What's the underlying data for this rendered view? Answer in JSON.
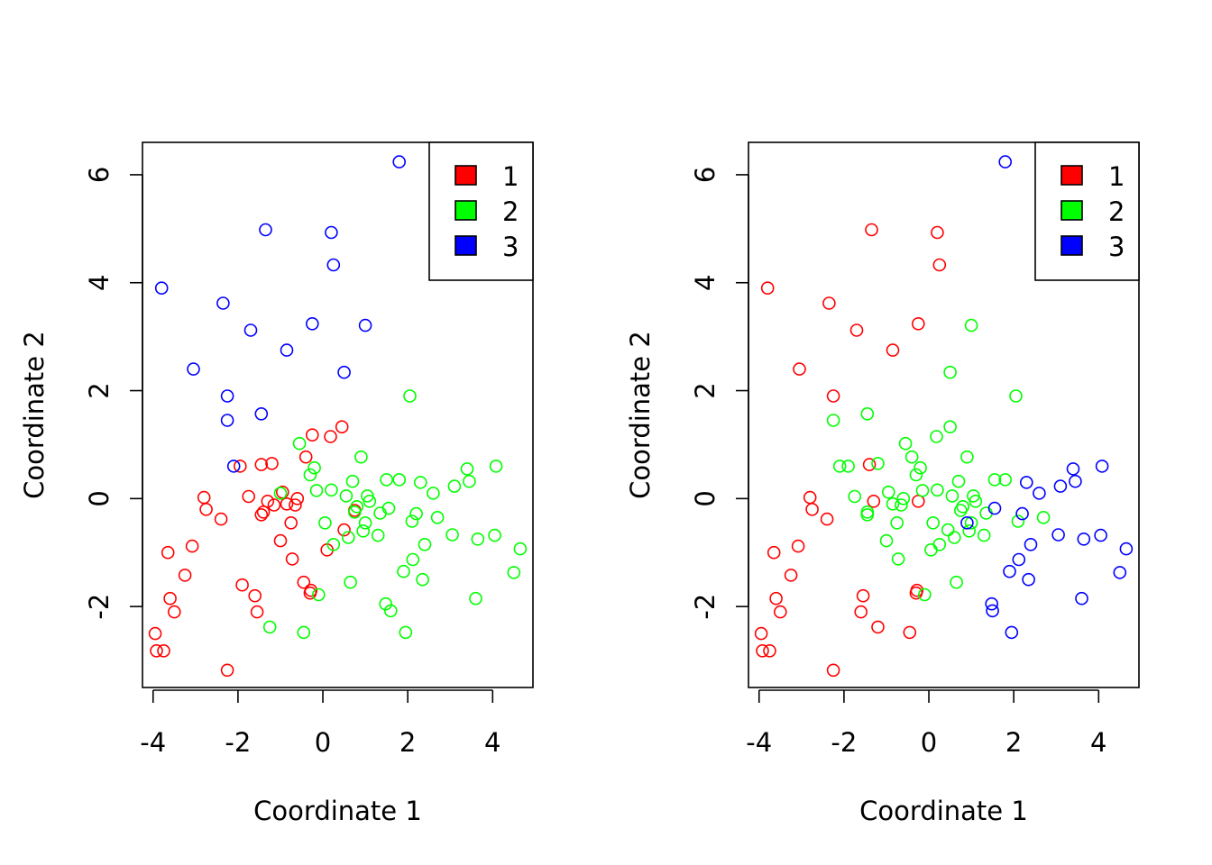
{
  "chart_data": [
    {
      "type": "scatter",
      "xlabel": "Coordinate 1",
      "ylabel": "Coordinate 2",
      "xlim": [
        -4.25,
        4.95
      ],
      "ylim": [
        -3.5,
        6.6
      ],
      "xticks": [
        -4,
        -2,
        0,
        2,
        4
      ],
      "yticks": [
        -2,
        0,
        2,
        4,
        6
      ],
      "xtick_labels": [
        "-4",
        "-2",
        "0",
        "2",
        "4"
      ],
      "ytick_labels": [
        "-2",
        "0",
        "2",
        "4",
        "6"
      ],
      "grid": false,
      "legend": {
        "placement": "top-right",
        "labels": [
          "1",
          "2",
          "3"
        ]
      },
      "series": [
        {
          "name": "1",
          "color": "#ff0000",
          "x": [
            -3.95,
            -3.75,
            -3.92,
            -3.6,
            -3.5,
            -3.65,
            -3.25,
            -3.08,
            -2.8,
            -2.75,
            -2.4,
            -2.25,
            -1.95,
            -1.9,
            -1.75,
            -1.6,
            -1.55,
            -1.45,
            -1.4,
            -1.45,
            -1.3,
            -1.2,
            -1.15,
            -1.0,
            -0.95,
            -0.85,
            -0.75,
            -0.72,
            -0.65,
            -0.6,
            -0.45,
            -0.4,
            -0.3,
            -0.28,
            -0.25,
            0.1,
            0.18,
            0.45,
            0.5,
            0.75
          ],
          "y": [
            -2.5,
            -2.82,
            -2.82,
            -1.85,
            -2.1,
            -1.0,
            -1.42,
            -0.88,
            0.02,
            -0.2,
            -0.38,
            -3.18,
            0.6,
            -1.6,
            0.04,
            -1.8,
            -2.1,
            -0.3,
            -0.25,
            0.63,
            -0.05,
            0.65,
            -0.12,
            -0.78,
            0.12,
            -0.1,
            -0.45,
            -1.12,
            -0.12,
            0.0,
            -1.55,
            0.77,
            -1.75,
            -1.7,
            1.18,
            -0.95,
            1.15,
            1.33,
            -0.58,
            -0.22
          ]
        },
        {
          "name": "2",
          "color": "#00ff00",
          "x": [
            -1.25,
            -1.0,
            -0.55,
            -0.45,
            -0.3,
            -0.2,
            -0.15,
            -0.1,
            0.05,
            0.2,
            0.25,
            0.55,
            0.6,
            0.65,
            0.7,
            0.75,
            0.8,
            0.9,
            0.95,
            1.0,
            1.05,
            1.1,
            1.3,
            1.35,
            1.48,
            1.5,
            1.55,
            1.6,
            1.8,
            1.9,
            1.95,
            2.05,
            2.1,
            2.12,
            2.2,
            2.3,
            2.35,
            2.4,
            2.6,
            2.7,
            3.05,
            3.1,
            3.4,
            3.45,
            3.6,
            3.65,
            4.05,
            4.08,
            4.5,
            4.65
          ],
          "y": [
            -2.38,
            0.1,
            1.02,
            -2.48,
            0.44,
            0.57,
            0.15,
            -1.78,
            -0.45,
            0.16,
            -0.85,
            0.05,
            -0.72,
            -1.55,
            0.32,
            -0.25,
            -0.15,
            0.77,
            -0.6,
            -0.45,
            0.05,
            -0.05,
            -0.68,
            -0.27,
            -1.95,
            0.35,
            -0.18,
            -2.08,
            0.35,
            -1.35,
            -2.48,
            1.9,
            -0.42,
            -1.13,
            -0.28,
            0.3,
            -1.5,
            -0.85,
            0.1,
            -0.35,
            -0.67,
            0.23,
            0.55,
            0.32,
            -1.85,
            -0.75,
            -0.68,
            0.6,
            -1.37,
            -0.93
          ]
        },
        {
          "name": "3",
          "color": "#0000ff",
          "x": [
            -3.8,
            -3.05,
            -2.35,
            -2.25,
            -2.25,
            -2.1,
            -1.7,
            -1.45,
            -1.35,
            -0.85,
            -0.25,
            0.2,
            0.25,
            0.5,
            1.0,
            1.8
          ],
          "y": [
            3.9,
            2.4,
            3.62,
            1.9,
            1.45,
            0.6,
            3.12,
            1.57,
            4.98,
            2.75,
            3.24,
            4.93,
            4.33,
            2.34,
            3.21,
            6.24
          ]
        }
      ]
    },
    {
      "type": "scatter",
      "xlabel": "Coordinate 1",
      "ylabel": "Coordinate 2",
      "xlim": [
        -4.25,
        4.95
      ],
      "ylim": [
        -3.5,
        6.6
      ],
      "xticks": [
        -4,
        -2,
        0,
        2,
        4
      ],
      "yticks": [
        -2,
        0,
        2,
        4,
        6
      ],
      "xtick_labels": [
        "-4",
        "-2",
        "0",
        "2",
        "4"
      ],
      "ytick_labels": [
        "-2",
        "0",
        "2",
        "4",
        "6"
      ],
      "grid": false,
      "legend": {
        "placement": "top-right",
        "labels": [
          "1",
          "2",
          "3"
        ]
      },
      "series": [
        {
          "name": "1",
          "color": "#ff0000",
          "x": [
            -3.95,
            -3.75,
            -3.92,
            -3.6,
            -3.5,
            -3.65,
            -3.25,
            -3.08,
            -2.8,
            -2.75,
            -2.4,
            -2.25,
            -1.55,
            -1.6,
            -1.4,
            -1.3,
            -1.2,
            -0.25,
            -0.45,
            -0.3,
            -0.28,
            -3.8,
            -3.05,
            -2.35,
            -2.25,
            -1.7,
            -1.35,
            -0.85,
            -0.25,
            0.2,
            0.25
          ],
          "y": [
            -2.5,
            -2.82,
            -2.82,
            -1.85,
            -2.1,
            -1.0,
            -1.42,
            -0.88,
            0.02,
            -0.2,
            -0.38,
            -3.18,
            -1.8,
            -2.1,
            0.63,
            -0.05,
            -2.38,
            -0.05,
            -2.48,
            -1.75,
            -1.7,
            3.9,
            2.4,
            3.62,
            1.9,
            3.12,
            4.98,
            2.75,
            3.24,
            4.93,
            4.33
          ]
        },
        {
          "name": "2",
          "color": "#00ff00",
          "x": [
            -1.9,
            -2.1,
            -1.75,
            -1.45,
            -1.45,
            -1.2,
            -1.0,
            -0.95,
            -0.85,
            -0.75,
            -0.72,
            -0.65,
            -0.6,
            -0.55,
            -0.4,
            -0.3,
            -0.2,
            -0.15,
            -0.1,
            0.05,
            0.1,
            0.18,
            0.2,
            0.25,
            0.45,
            0.5,
            0.55,
            0.6,
            0.65,
            0.7,
            0.75,
            0.8,
            0.9,
            0.95,
            1.0,
            1.05,
            1.1,
            1.3,
            1.35,
            1.55,
            1.8,
            2.05,
            2.1,
            2.7,
            -2.25,
            -1.45,
            0.5,
            1.0
          ],
          "y": [
            0.6,
            0.6,
            0.04,
            -0.3,
            -0.25,
            0.65,
            -0.78,
            0.12,
            -0.1,
            -0.45,
            -1.12,
            -0.12,
            0.0,
            1.02,
            0.77,
            0.44,
            0.57,
            0.15,
            -1.78,
            -0.95,
            -0.45,
            1.15,
            0.16,
            -0.85,
            -0.58,
            1.33,
            0.05,
            -0.72,
            -1.55,
            0.32,
            -0.22,
            -0.15,
            0.77,
            -0.6,
            -0.45,
            0.05,
            -0.05,
            -0.68,
            -0.27,
            0.35,
            0.35,
            1.9,
            -0.42,
            -0.35,
            1.45,
            1.57,
            2.34,
            3.21
          ]
        },
        {
          "name": "3",
          "color": "#0000ff",
          "x": [
            0.9,
            1.48,
            1.5,
            1.55,
            1.9,
            1.95,
            2.12,
            2.2,
            2.3,
            2.35,
            2.4,
            2.6,
            3.05,
            3.1,
            3.4,
            3.45,
            3.6,
            3.65,
            4.05,
            4.08,
            4.5,
            4.65,
            1.8
          ],
          "y": [
            -0.45,
            -1.95,
            -2.08,
            -0.18,
            -1.35,
            -2.48,
            -1.13,
            -0.28,
            0.3,
            -1.5,
            -0.85,
            0.1,
            -0.67,
            0.23,
            0.55,
            0.32,
            -1.85,
            -0.75,
            -0.68,
            0.6,
            -1.37,
            -0.93,
            6.24
          ]
        }
      ]
    }
  ]
}
